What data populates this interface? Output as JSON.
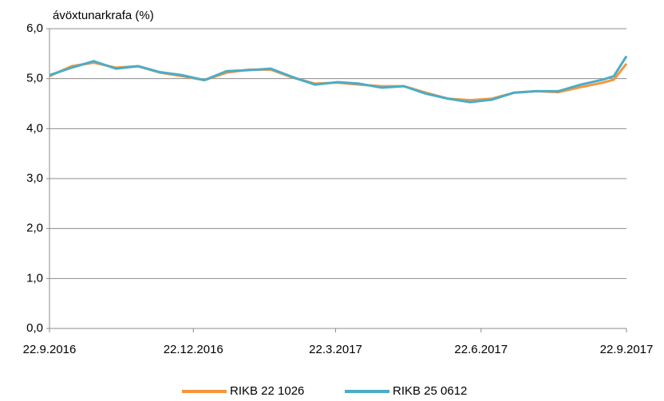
{
  "chart_data": {
    "type": "line",
    "y_label": "ávöxtunarkrafa (%)",
    "x": [
      "2016-09-22",
      "2016-10-06",
      "2016-10-20",
      "2016-11-03",
      "2016-11-17",
      "2016-12-01",
      "2016-12-15",
      "2016-12-29",
      "2017-01-12",
      "2017-01-26",
      "2017-02-09",
      "2017-02-23",
      "2017-03-09",
      "2017-03-23",
      "2017-04-06",
      "2017-04-20",
      "2017-05-04",
      "2017-05-18",
      "2017-06-01",
      "2017-06-15",
      "2017-06-29",
      "2017-07-13",
      "2017-07-27",
      "2017-08-10",
      "2017-08-24",
      "2017-09-07",
      "2017-09-14",
      "2017-09-22"
    ],
    "series": [
      {
        "name": "RIKB 22 1026",
        "color": "#f7963c",
        "values": [
          5.05,
          5.25,
          5.32,
          5.22,
          5.25,
          5.12,
          5.05,
          4.97,
          5.12,
          5.18,
          5.18,
          5.02,
          4.9,
          4.92,
          4.88,
          4.85,
          4.85,
          4.72,
          4.6,
          4.57,
          4.6,
          4.72,
          4.75,
          4.73,
          4.83,
          4.92,
          4.98,
          5.3
        ]
      },
      {
        "name": "RIKB 25 0612",
        "color": "#4bacc6",
        "values": [
          5.07,
          5.22,
          5.35,
          5.2,
          5.25,
          5.13,
          5.07,
          4.97,
          5.15,
          5.17,
          5.2,
          5.03,
          4.88,
          4.93,
          4.9,
          4.82,
          4.85,
          4.7,
          4.6,
          4.53,
          4.58,
          4.72,
          4.75,
          4.75,
          4.88,
          4.98,
          5.05,
          5.45
        ]
      }
    ],
    "xlim": [
      "2016-09-22",
      "2017-09-22"
    ],
    "xticks": [
      {
        "value": "2016-09-22",
        "label": "22.9.2016"
      },
      {
        "value": "2016-12-22",
        "label": "22.12.2016"
      },
      {
        "value": "2017-03-22",
        "label": "22.3.2017"
      },
      {
        "value": "2017-06-22",
        "label": "22.6.2017"
      },
      {
        "value": "2017-09-22",
        "label": "22.9.2017"
      }
    ],
    "ylim": [
      0,
      6
    ],
    "yticks": [
      {
        "value": 0,
        "label": "0,0"
      },
      {
        "value": 1,
        "label": "1,0"
      },
      {
        "value": 2,
        "label": "2,0"
      },
      {
        "value": 3,
        "label": "3,0"
      },
      {
        "value": 4,
        "label": "4,0"
      },
      {
        "value": 5,
        "label": "5,0"
      },
      {
        "value": 6,
        "label": "6,0"
      }
    ],
    "grid": true,
    "legend": "bottom"
  }
}
